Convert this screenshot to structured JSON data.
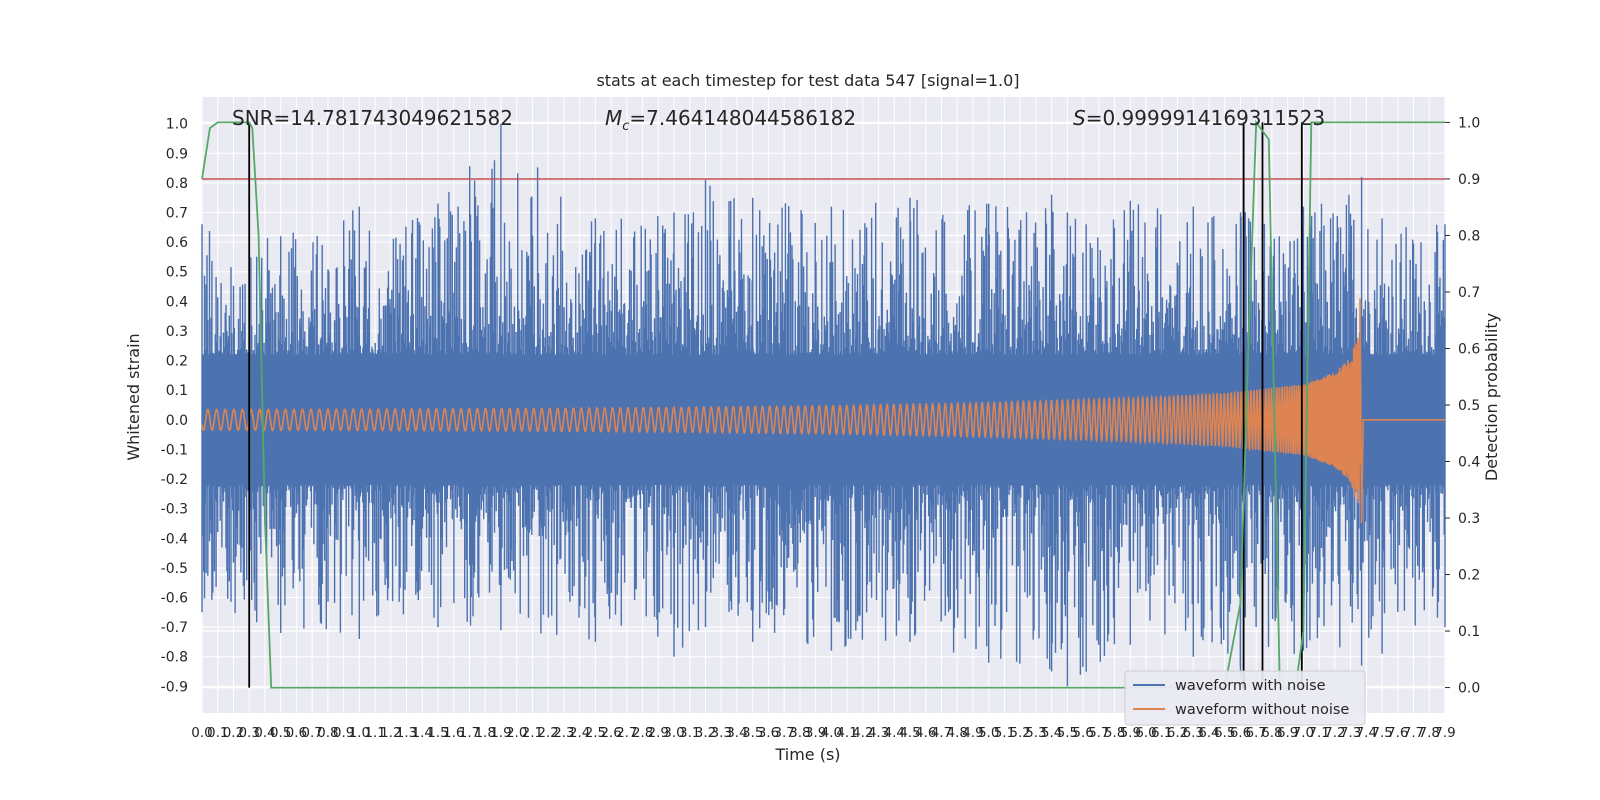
{
  "chart_data": {
    "type": "line",
    "title": "stats at each timestep for test data 547 [signal=1.0]",
    "xlabel": "Time (s)",
    "ylabel_left": "Whitened strain",
    "ylabel_right": "Detection probability",
    "xlim": [
      0.0,
      7.9
    ],
    "ylim_left": [
      -0.99,
      1.09
    ],
    "ylim_right": [
      -0.045,
      1.045
    ],
    "grid": true,
    "x_ticks": [
      "0.0",
      "0.1",
      "0.2",
      "0.3",
      "0.4",
      "0.5",
      "0.6",
      "0.7",
      "0.8",
      "0.9",
      "1.0",
      "1.1",
      "1.2",
      "1.3",
      "1.4",
      "1.5",
      "1.6",
      "1.7",
      "1.8",
      "1.9",
      "2.0",
      "2.1",
      "2.2",
      "2.3",
      "2.4",
      "2.5",
      "2.6",
      "2.7",
      "2.8",
      "2.9",
      "3.0",
      "3.1",
      "3.2",
      "3.3",
      "3.4",
      "3.5",
      "3.6",
      "3.7",
      "3.8",
      "3.9",
      "4.0",
      "4.1",
      "4.2",
      "4.3",
      "4.4",
      "4.5",
      "4.6",
      "4.7",
      "4.8",
      "4.9",
      "5.0",
      "5.1",
      "5.2",
      "5.3",
      "5.4",
      "5.5",
      "5.6",
      "5.7",
      "5.8",
      "5.9",
      "6.0",
      "6.1",
      "6.2",
      "6.3",
      "6.4",
      "6.5",
      "6.6",
      "6.7",
      "6.8",
      "6.9",
      "7.0",
      "7.1",
      "7.2",
      "7.3",
      "7.4",
      "7.5",
      "7.6",
      "7.7",
      "7.8",
      "7.9"
    ],
    "y_ticks_left": [
      "-0.9",
      "-0.8",
      "-0.7",
      "-0.6",
      "-0.5",
      "-0.4",
      "-0.3",
      "-0.2",
      "-0.1",
      "0.0",
      "0.1",
      "0.2",
      "0.3",
      "0.4",
      "0.5",
      "0.6",
      "0.7",
      "0.8",
      "0.9",
      "1.0"
    ],
    "y_ticks_right": [
      "0.0",
      "0.1",
      "0.2",
      "0.3",
      "0.4",
      "0.5",
      "0.6",
      "0.7",
      "0.8",
      "0.9",
      "1.0"
    ],
    "annotations": {
      "snr": "SNR=14.781743049621582",
      "mc_symbol": "M",
      "mc_sub": "c",
      "mc_value": "=7.464148044586182",
      "s_symbol": "S",
      "s_value": "=0.9999914169311523"
    },
    "threshold_right": 0.9,
    "vertical_lines_x": [
      0.3,
      6.62,
      6.74,
      6.99
    ],
    "series": [
      {
        "name": "waveform with noise",
        "color": "#4c72b0",
        "axis": "left",
        "envelope": {
          "x": [
            0.0,
            0.5,
            1.0,
            1.5,
            1.9,
            2.5,
            3.0,
            3.2,
            3.5,
            4.0,
            4.5,
            5.0,
            5.4,
            5.5,
            5.9,
            6.3,
            6.6,
            7.0,
            7.37,
            7.5,
            7.9
          ],
          "upper": [
            0.66,
            0.62,
            0.72,
            0.73,
            1.0,
            0.68,
            0.7,
            0.81,
            0.75,
            0.72,
            0.75,
            0.73,
            0.76,
            0.7,
            0.74,
            0.72,
            0.7,
            0.72,
            0.82,
            0.68,
            0.66
          ],
          "lower": [
            -0.65,
            -0.72,
            -0.74,
            -0.7,
            -0.71,
            -0.75,
            -0.8,
            -0.7,
            -0.75,
            -0.78,
            -0.75,
            -0.82,
            -0.85,
            -0.9,
            -0.76,
            -0.8,
            -0.87,
            -0.78,
            -0.83,
            -0.79,
            -0.7
          ]
        }
      },
      {
        "name": "waveform without noise",
        "color": "#dd8452",
        "axis": "left",
        "envelope": {
          "x": [
            0.0,
            1.0,
            2.0,
            3.0,
            4.0,
            5.0,
            6.0,
            6.5,
            7.0,
            7.2,
            7.3,
            7.35,
            7.38,
            7.9
          ],
          "amplitude": [
            0.035,
            0.036,
            0.038,
            0.042,
            0.048,
            0.058,
            0.075,
            0.09,
            0.12,
            0.16,
            0.21,
            0.3,
            0.0,
            0.0
          ],
          "peak": 0.41
        }
      },
      {
        "name": "detection probability",
        "color": "#55a868",
        "axis": "right",
        "x": [
          0.0,
          0.05,
          0.1,
          0.3,
          0.32,
          0.36,
          0.4,
          0.44,
          0.5,
          0.7,
          1.0,
          2.0,
          3.0,
          4.0,
          5.0,
          6.0,
          6.5,
          6.6,
          6.65,
          6.7,
          6.78,
          6.85,
          6.95,
          7.0,
          7.05,
          7.9
        ],
        "y": [
          0.9,
          0.99,
          1.0,
          1.0,
          0.99,
          0.8,
          0.3,
          0.0,
          0.0,
          0.0,
          0.0,
          0.0,
          0.0,
          0.0,
          0.0,
          0.0,
          0.0,
          0.15,
          0.6,
          1.0,
          0.97,
          0.0,
          0.0,
          0.1,
          1.0,
          1.0
        ]
      },
      {
        "name": "threshold",
        "color": "#c44e52",
        "axis": "right",
        "value": 0.9
      }
    ],
    "legend": {
      "placement": "lower-right",
      "entries": [
        "waveform with noise",
        "waveform without noise"
      ]
    }
  }
}
